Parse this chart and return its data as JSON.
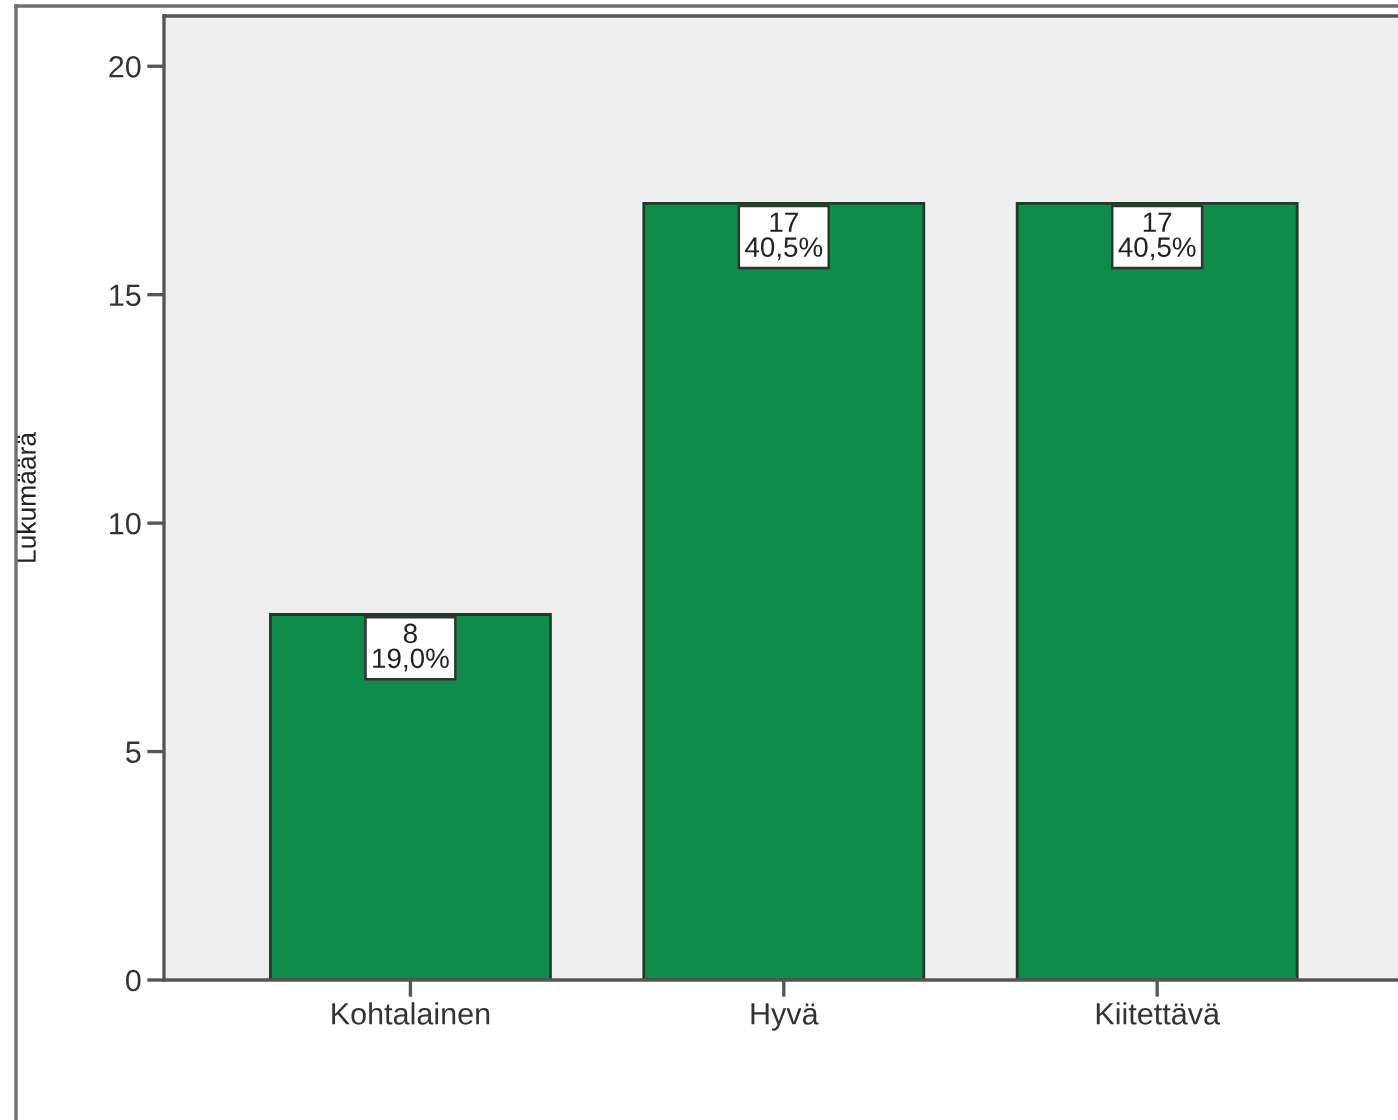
{
  "chart_data": {
    "type": "bar",
    "ylabel": "Lukumäärä",
    "categories": [
      "Kohtalainen",
      "Hyvä",
      "Kiitettävä"
    ],
    "values": [
      8,
      17,
      17
    ],
    "color": "#108c4a",
    "value_labels": [
      "8\n19,0%",
      "17\n40,5%",
      "17\n40,5%"
    ],
    "ylim": [
      0,
      21.1
    ],
    "yticks": [
      0,
      5,
      10,
      15,
      20
    ]
  }
}
